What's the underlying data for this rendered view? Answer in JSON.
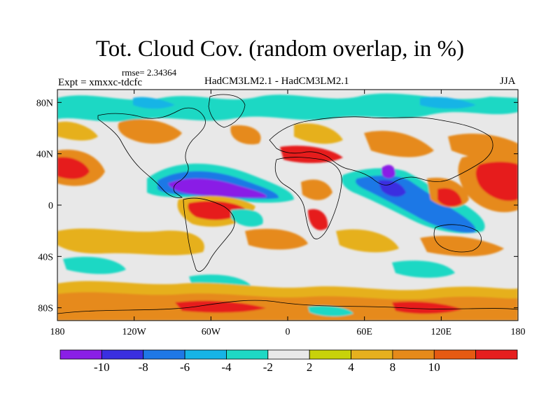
{
  "title": "Tot. Cloud Cov. (random overlap, in %)",
  "rmse_label": "rmse= 2.34364",
  "expt_label": "Expt = xmxxc-tdcfc",
  "model_label": "HadCM3LM2.1 - HadCM3LM2.1",
  "season_label": "JJA",
  "lat_ticks": [
    {
      "label": "80N",
      "lat": 80
    },
    {
      "label": "40N",
      "lat": 40
    },
    {
      "label": "0",
      "lat": 0
    },
    {
      "label": "40S",
      "lat": -40
    },
    {
      "label": "80S",
      "lat": -80
    }
  ],
  "lon_ticks": [
    {
      "label": "180",
      "lon": -180
    },
    {
      "label": "120W",
      "lon": -120
    },
    {
      "label": "60W",
      "lon": -60
    },
    {
      "label": "0",
      "lon": 0
    },
    {
      "label": "60E",
      "lon": 60
    },
    {
      "label": "120E",
      "lon": 120
    },
    {
      "label": "180",
      "lon": 180
    }
  ],
  "colorbar": {
    "colors": [
      "#8a1fe6",
      "#3a2fe0",
      "#1f78e6",
      "#16b4e6",
      "#1ed8c4",
      "#e8e8e8",
      "#c8d20a",
      "#e6b01e",
      "#e68a1a",
      "#e65a12",
      "#e61e1e"
    ],
    "labels": [
      "-10",
      "-8",
      "-6",
      "-4",
      "-2",
      "2",
      "4",
      "8",
      "10"
    ]
  },
  "map_colors": {
    "neutral": "#e8e8e8",
    "coast": "#000000"
  }
}
